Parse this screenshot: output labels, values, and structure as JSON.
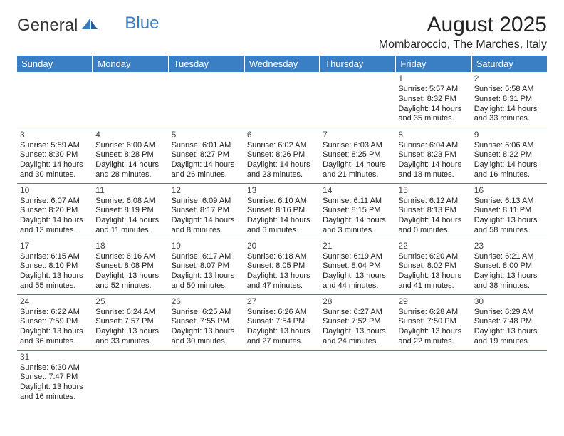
{
  "logo": {
    "text1": "General",
    "text2": "Blue"
  },
  "title": "August 2025",
  "location": "Mombaroccio, The Marches, Italy",
  "colors": {
    "header_bg": "#3a7fc4",
    "header_text": "#ffffff",
    "body_text": "#222222",
    "rule": "#3a7fc4",
    "background": "#ffffff"
  },
  "typography": {
    "title_fontsize": 30,
    "location_fontsize": 16,
    "dayheader_fontsize": 13,
    "cell_fontsize": 11
  },
  "day_headers": [
    "Sunday",
    "Monday",
    "Tuesday",
    "Wednesday",
    "Thursday",
    "Friday",
    "Saturday"
  ],
  "weeks": [
    [
      null,
      null,
      null,
      null,
      null,
      {
        "n": "1",
        "sr": "Sunrise: 5:57 AM",
        "ss": "Sunset: 8:32 PM",
        "d1": "Daylight: 14 hours",
        "d2": "and 35 minutes."
      },
      {
        "n": "2",
        "sr": "Sunrise: 5:58 AM",
        "ss": "Sunset: 8:31 PM",
        "d1": "Daylight: 14 hours",
        "d2": "and 33 minutes."
      }
    ],
    [
      {
        "n": "3",
        "sr": "Sunrise: 5:59 AM",
        "ss": "Sunset: 8:30 PM",
        "d1": "Daylight: 14 hours",
        "d2": "and 30 minutes."
      },
      {
        "n": "4",
        "sr": "Sunrise: 6:00 AM",
        "ss": "Sunset: 8:28 PM",
        "d1": "Daylight: 14 hours",
        "d2": "and 28 minutes."
      },
      {
        "n": "5",
        "sr": "Sunrise: 6:01 AM",
        "ss": "Sunset: 8:27 PM",
        "d1": "Daylight: 14 hours",
        "d2": "and 26 minutes."
      },
      {
        "n": "6",
        "sr": "Sunrise: 6:02 AM",
        "ss": "Sunset: 8:26 PM",
        "d1": "Daylight: 14 hours",
        "d2": "and 23 minutes."
      },
      {
        "n": "7",
        "sr": "Sunrise: 6:03 AM",
        "ss": "Sunset: 8:25 PM",
        "d1": "Daylight: 14 hours",
        "d2": "and 21 minutes."
      },
      {
        "n": "8",
        "sr": "Sunrise: 6:04 AM",
        "ss": "Sunset: 8:23 PM",
        "d1": "Daylight: 14 hours",
        "d2": "and 18 minutes."
      },
      {
        "n": "9",
        "sr": "Sunrise: 6:06 AM",
        "ss": "Sunset: 8:22 PM",
        "d1": "Daylight: 14 hours",
        "d2": "and 16 minutes."
      }
    ],
    [
      {
        "n": "10",
        "sr": "Sunrise: 6:07 AM",
        "ss": "Sunset: 8:20 PM",
        "d1": "Daylight: 14 hours",
        "d2": "and 13 minutes."
      },
      {
        "n": "11",
        "sr": "Sunrise: 6:08 AM",
        "ss": "Sunset: 8:19 PM",
        "d1": "Daylight: 14 hours",
        "d2": "and 11 minutes."
      },
      {
        "n": "12",
        "sr": "Sunrise: 6:09 AM",
        "ss": "Sunset: 8:17 PM",
        "d1": "Daylight: 14 hours",
        "d2": "and 8 minutes."
      },
      {
        "n": "13",
        "sr": "Sunrise: 6:10 AM",
        "ss": "Sunset: 8:16 PM",
        "d1": "Daylight: 14 hours",
        "d2": "and 6 minutes."
      },
      {
        "n": "14",
        "sr": "Sunrise: 6:11 AM",
        "ss": "Sunset: 8:15 PM",
        "d1": "Daylight: 14 hours",
        "d2": "and 3 minutes."
      },
      {
        "n": "15",
        "sr": "Sunrise: 6:12 AM",
        "ss": "Sunset: 8:13 PM",
        "d1": "Daylight: 14 hours",
        "d2": "and 0 minutes."
      },
      {
        "n": "16",
        "sr": "Sunrise: 6:13 AM",
        "ss": "Sunset: 8:11 PM",
        "d1": "Daylight: 13 hours",
        "d2": "and 58 minutes."
      }
    ],
    [
      {
        "n": "17",
        "sr": "Sunrise: 6:15 AM",
        "ss": "Sunset: 8:10 PM",
        "d1": "Daylight: 13 hours",
        "d2": "and 55 minutes."
      },
      {
        "n": "18",
        "sr": "Sunrise: 6:16 AM",
        "ss": "Sunset: 8:08 PM",
        "d1": "Daylight: 13 hours",
        "d2": "and 52 minutes."
      },
      {
        "n": "19",
        "sr": "Sunrise: 6:17 AM",
        "ss": "Sunset: 8:07 PM",
        "d1": "Daylight: 13 hours",
        "d2": "and 50 minutes."
      },
      {
        "n": "20",
        "sr": "Sunrise: 6:18 AM",
        "ss": "Sunset: 8:05 PM",
        "d1": "Daylight: 13 hours",
        "d2": "and 47 minutes."
      },
      {
        "n": "21",
        "sr": "Sunrise: 6:19 AM",
        "ss": "Sunset: 8:04 PM",
        "d1": "Daylight: 13 hours",
        "d2": "and 44 minutes."
      },
      {
        "n": "22",
        "sr": "Sunrise: 6:20 AM",
        "ss": "Sunset: 8:02 PM",
        "d1": "Daylight: 13 hours",
        "d2": "and 41 minutes."
      },
      {
        "n": "23",
        "sr": "Sunrise: 6:21 AM",
        "ss": "Sunset: 8:00 PM",
        "d1": "Daylight: 13 hours",
        "d2": "and 38 minutes."
      }
    ],
    [
      {
        "n": "24",
        "sr": "Sunrise: 6:22 AM",
        "ss": "Sunset: 7:59 PM",
        "d1": "Daylight: 13 hours",
        "d2": "and 36 minutes."
      },
      {
        "n": "25",
        "sr": "Sunrise: 6:24 AM",
        "ss": "Sunset: 7:57 PM",
        "d1": "Daylight: 13 hours",
        "d2": "and 33 minutes."
      },
      {
        "n": "26",
        "sr": "Sunrise: 6:25 AM",
        "ss": "Sunset: 7:55 PM",
        "d1": "Daylight: 13 hours",
        "d2": "and 30 minutes."
      },
      {
        "n": "27",
        "sr": "Sunrise: 6:26 AM",
        "ss": "Sunset: 7:54 PM",
        "d1": "Daylight: 13 hours",
        "d2": "and 27 minutes."
      },
      {
        "n": "28",
        "sr": "Sunrise: 6:27 AM",
        "ss": "Sunset: 7:52 PM",
        "d1": "Daylight: 13 hours",
        "d2": "and 24 minutes."
      },
      {
        "n": "29",
        "sr": "Sunrise: 6:28 AM",
        "ss": "Sunset: 7:50 PM",
        "d1": "Daylight: 13 hours",
        "d2": "and 22 minutes."
      },
      {
        "n": "30",
        "sr": "Sunrise: 6:29 AM",
        "ss": "Sunset: 7:48 PM",
        "d1": "Daylight: 13 hours",
        "d2": "and 19 minutes."
      }
    ],
    [
      {
        "n": "31",
        "sr": "Sunrise: 6:30 AM",
        "ss": "Sunset: 7:47 PM",
        "d1": "Daylight: 13 hours",
        "d2": "and 16 minutes."
      },
      null,
      null,
      null,
      null,
      null,
      null
    ]
  ]
}
